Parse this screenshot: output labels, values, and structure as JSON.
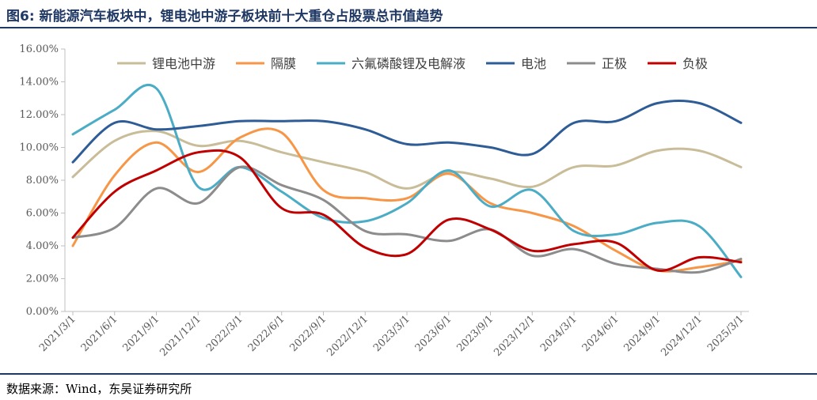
{
  "header": {
    "title": "图6:  新能源汽车板块中，锂电池中游子板块前十大重仓占股票总市值趋势"
  },
  "footer": {
    "source": "数据来源：Wind，东吴证券研究所"
  },
  "chart_data": {
    "type": "line",
    "title": "",
    "xlabel": "",
    "ylabel": "",
    "ylim": [
      0,
      16
    ],
    "y_tick_format": "percent_2dp",
    "y_ticks": [
      "0.00%",
      "2.00%",
      "4.00%",
      "6.00%",
      "8.00%",
      "10.00%",
      "12.00%",
      "14.00%",
      "16.00%"
    ],
    "grid": false,
    "legend_position": "top",
    "smooth": true,
    "x": [
      "2021/3/1",
      "2021/6/1",
      "2021/9/1",
      "2021/12/1",
      "2022/3/1",
      "2022/6/1",
      "2022/9/1",
      "2022/12/1",
      "2023/3/1",
      "2023/6/1",
      "2023/9/1",
      "2023/12/1",
      "2024/3/1",
      "2024/6/1",
      "2024/9/1",
      "2024/12/1",
      "2025/3/1"
    ],
    "series": [
      {
        "name": "锂电池中游",
        "color": "#c9bc98",
        "values": [
          8.2,
          10.4,
          11.0,
          10.1,
          10.4,
          9.7,
          9.1,
          8.5,
          7.5,
          8.5,
          8.1,
          7.6,
          8.8,
          8.9,
          9.8,
          9.8,
          8.8
        ]
      },
      {
        "name": "隔膜",
        "color": "#f79646",
        "values": [
          4.0,
          8.3,
          10.3,
          8.5,
          10.6,
          10.9,
          7.4,
          6.9,
          6.9,
          8.4,
          6.6,
          6.0,
          5.2,
          3.7,
          2.5,
          2.7,
          3.1
        ]
      },
      {
        "name": "六氟磷酸锂及电解液",
        "color": "#4bacc6",
        "values": [
          10.8,
          12.3,
          13.6,
          7.6,
          8.8,
          7.3,
          5.7,
          5.5,
          6.6,
          8.6,
          6.4,
          7.4,
          4.9,
          4.7,
          5.4,
          5.2,
          2.1
        ]
      },
      {
        "name": "电池",
        "color": "#2e5c97",
        "values": [
          9.1,
          11.5,
          11.1,
          11.3,
          11.6,
          11.6,
          11.6,
          11.1,
          10.2,
          10.3,
          10.0,
          9.6,
          11.5,
          11.6,
          12.7,
          12.7,
          11.5
        ]
      },
      {
        "name": "正极",
        "color": "#8c8c8c",
        "values": [
          4.5,
          5.1,
          7.5,
          6.6,
          8.8,
          7.7,
          6.8,
          4.9,
          4.7,
          4.3,
          5.0,
          3.4,
          3.8,
          2.9,
          2.6,
          2.4,
          3.2
        ]
      },
      {
        "name": "负极",
        "color": "#c00000",
        "values": [
          4.5,
          7.3,
          8.6,
          9.7,
          9.4,
          6.3,
          5.9,
          3.9,
          3.5,
          5.6,
          5.0,
          3.7,
          4.1,
          4.2,
          2.5,
          3.3,
          3.0
        ]
      }
    ]
  }
}
